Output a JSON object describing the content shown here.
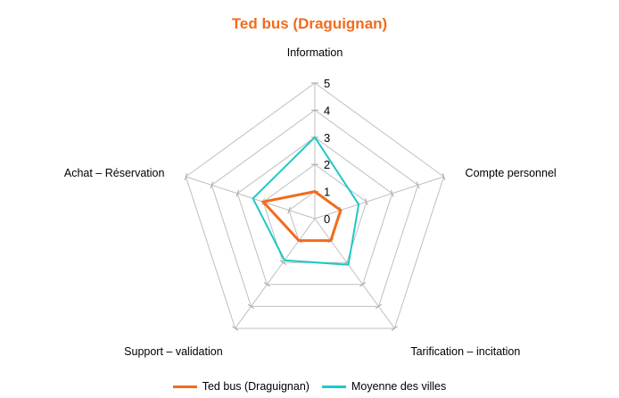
{
  "chart_data": {
    "type": "radar",
    "title": "Ted bus (Draguignan)",
    "title_color": "#F26B1D",
    "axes": [
      "Information",
      "Compte personnel",
      "Tarification – incitation",
      "Support – validation",
      "Achat – Réservation"
    ],
    "ticks": [
      "0",
      "1",
      "2",
      "3",
      "4",
      "5"
    ],
    "range": [
      0,
      5
    ],
    "grid_color": "#BFBFBF",
    "series": [
      {
        "name": "Ted bus (Draguignan)",
        "color": "#F26B1D",
        "values": [
          1,
          1,
          1,
          1,
          2
        ]
      },
      {
        "name": "Moyenne des villes",
        "color": "#1EC8C8",
        "values": [
          3,
          1.7,
          2.1,
          1.9,
          2.4
        ]
      }
    ],
    "legend": "bottom"
  }
}
